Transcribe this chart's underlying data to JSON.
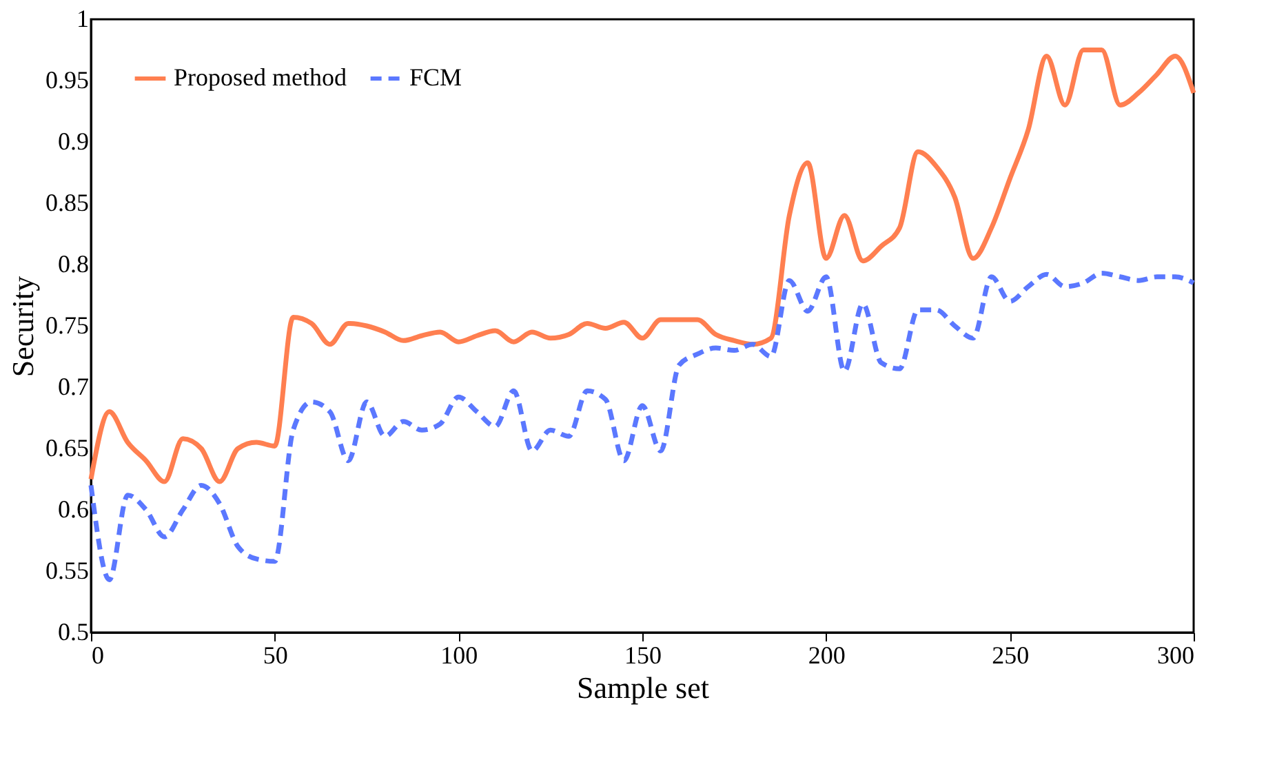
{
  "chart_data": {
    "type": "line",
    "xlabel": "Sample set",
    "ylabel": "Security",
    "x": [
      0,
      5,
      10,
      15,
      20,
      25,
      30,
      35,
      40,
      45,
      50,
      55,
      60,
      65,
      70,
      75,
      80,
      85,
      90,
      95,
      100,
      105,
      110,
      115,
      120,
      125,
      130,
      135,
      140,
      145,
      150,
      155,
      160,
      165,
      170,
      175,
      180,
      185,
      190,
      195,
      200,
      205,
      210,
      215,
      220,
      225,
      230,
      235,
      240,
      245,
      250,
      255,
      260,
      265,
      270,
      275,
      280,
      285,
      290,
      295,
      300
    ],
    "series": [
      {
        "name": "Proposed method",
        "color": "#ff7f50",
        "line_style": "solid",
        "values": [
          0.625,
          0.68,
          0.655,
          0.64,
          0.623,
          0.658,
          0.65,
          0.623,
          0.65,
          0.655,
          0.652,
          0.757,
          0.752,
          0.735,
          0.752,
          0.75,
          0.745,
          0.738,
          0.742,
          0.745,
          0.737,
          0.742,
          0.746,
          0.737,
          0.745,
          0.74,
          0.743,
          0.752,
          0.748,
          0.753,
          0.74,
          0.755,
          0.755,
          0.755,
          0.743,
          0.738,
          0.735,
          0.74,
          0.84,
          0.883,
          0.805,
          0.84,
          0.803,
          0.815,
          0.83,
          0.892,
          0.88,
          0.855,
          0.805,
          0.83,
          0.87,
          0.91,
          0.97,
          0.93,
          0.975,
          0.975,
          0.93,
          0.94,
          0.955,
          0.97,
          0.94
        ]
      },
      {
        "name": "FCM",
        "color": "#5b78ff",
        "line_style": "dashed",
        "values": [
          0.62,
          0.543,
          0.612,
          0.6,
          0.578,
          0.6,
          0.62,
          0.605,
          0.57,
          0.56,
          0.558,
          0.665,
          0.688,
          0.68,
          0.64,
          0.688,
          0.66,
          0.672,
          0.665,
          0.67,
          0.692,
          0.68,
          0.668,
          0.697,
          0.648,
          0.665,
          0.66,
          0.697,
          0.69,
          0.64,
          0.685,
          0.648,
          0.718,
          0.727,
          0.732,
          0.73,
          0.735,
          0.725,
          0.787,
          0.762,
          0.79,
          0.713,
          0.768,
          0.72,
          0.715,
          0.763,
          0.763,
          0.75,
          0.74,
          0.79,
          0.77,
          0.782,
          0.792,
          0.782,
          0.785,
          0.793,
          0.79,
          0.787,
          0.79,
          0.79,
          0.785
        ]
      }
    ],
    "xlim": [
      0,
      300
    ],
    "xticks": [
      0,
      50,
      100,
      150,
      200,
      250,
      300
    ],
    "ylim": [
      0.5,
      1
    ],
    "yticks": [
      0.5,
      0.55,
      0.6,
      0.65,
      0.7,
      0.75,
      0.8,
      0.85,
      0.9,
      0.95,
      1
    ],
    "grid": false,
    "legend": "top left",
    "marker": "none"
  }
}
